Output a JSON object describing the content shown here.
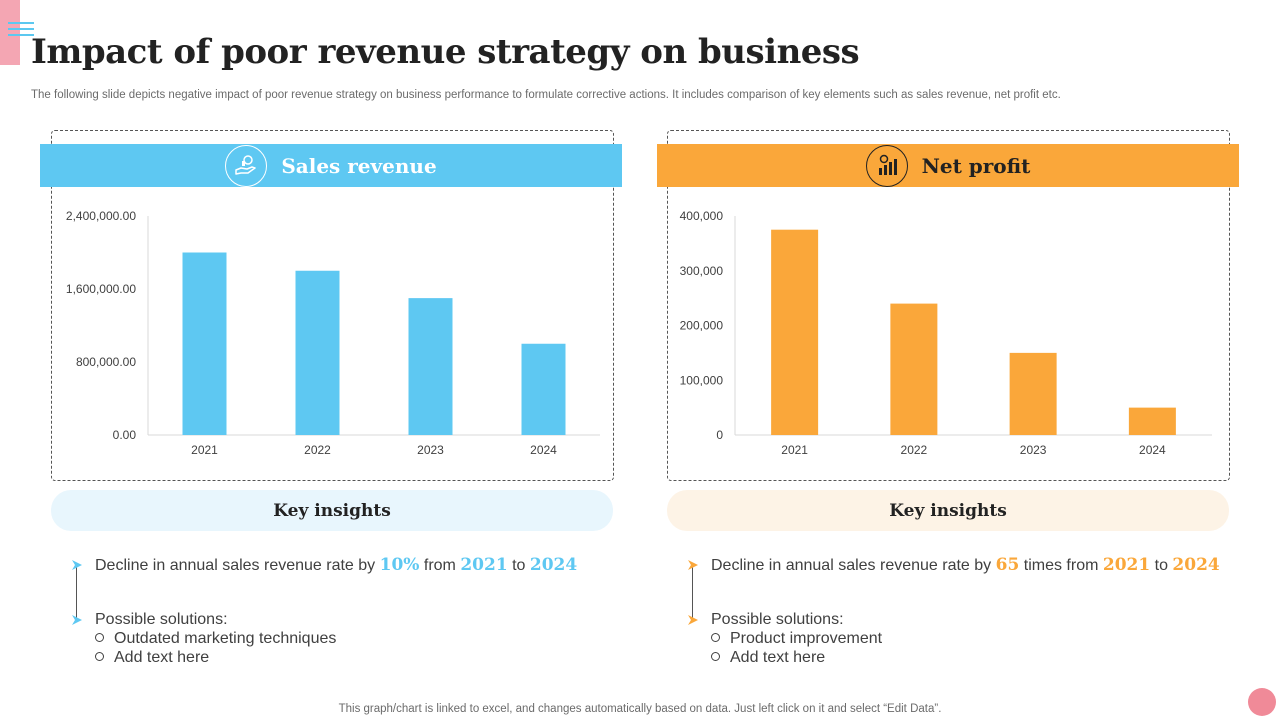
{
  "page": {
    "title": "Impact of poor revenue strategy on business",
    "subtitle": "The following slide depicts negative impact of poor revenue strategy on business performance to formulate corrective actions. It includes comparison of key elements such as sales revenue, net profit etc.",
    "footer": "This graph/chart is linked to excel, and changes automatically based on data. Just left click on it and select “Edit Data”."
  },
  "colors": {
    "blue": "#5ec8f2",
    "orange": "#faa73a",
    "blue_pale": "#e8f6fd",
    "orange_pale": "#fdf3e6"
  },
  "panels": [
    {
      "heading": "Sales revenue",
      "icon": "money-hand-icon",
      "insights_title": "Key insights",
      "insight": {
        "pre": "Decline in annual sales revenue rate by ",
        "v1": "10%",
        "mid1": " from ",
        "v2": "2021",
        "mid2": " to ",
        "v3": "2024"
      },
      "solutions_label": "Possible solutions:",
      "solutions": [
        "Outdated marketing techniques",
        "Add text here"
      ]
    },
    {
      "heading": "Net profit",
      "icon": "bar-chart-icon",
      "insights_title": "Key insights",
      "insight": {
        "pre": "Decline in annual sales revenue rate by ",
        "v1": "65",
        "mid1": " times from ",
        "v2": "2021",
        "mid2": " to ",
        "v3": "2024"
      },
      "solutions_label": "Possible solutions:",
      "solutions": [
        "Product improvement",
        "Add text here"
      ]
    }
  ],
  "chart_data": [
    {
      "type": "bar",
      "title": "Sales revenue",
      "categories": [
        "2021",
        "2022",
        "2023",
        "2024"
      ],
      "values": [
        2000000,
        1800000,
        1500000,
        1000000
      ],
      "ylim": [
        0,
        2400000
      ],
      "yticks": [
        0,
        800000,
        1600000,
        2400000
      ],
      "ytick_labels": [
        "0.00",
        "800,000.00",
        "1,600,000.00",
        "2,400,000.00"
      ],
      "color": "#5ec8f2",
      "grid": false
    },
    {
      "type": "bar",
      "title": "Net profit",
      "categories": [
        "2021",
        "2022",
        "2023",
        "2024"
      ],
      "values": [
        375000,
        240000,
        150000,
        50000
      ],
      "ylim": [
        0,
        400000
      ],
      "yticks": [
        0,
        100000,
        200000,
        300000,
        400000
      ],
      "ytick_labels": [
        "0",
        "100,000",
        "200,000",
        "300,000",
        "400,000"
      ],
      "color": "#faa73a",
      "grid": false
    }
  ]
}
